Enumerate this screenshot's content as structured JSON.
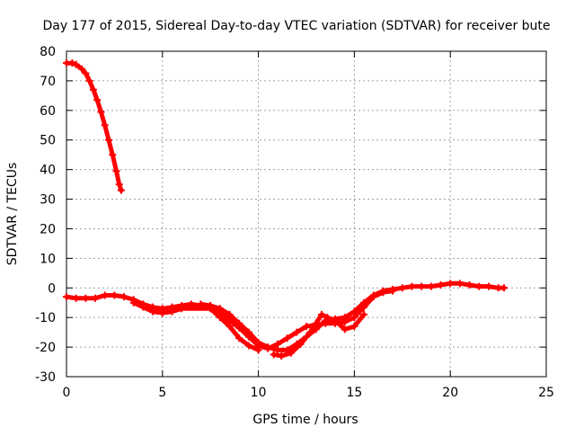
{
  "chart_data": {
    "type": "scatter",
    "title": "Day 177 of 2015, Sidereal Day-to-day VTEC variation (SDTVAR) for receiver bute",
    "xlabel": "GPS time / hours",
    "ylabel": "SDTVAR / TECUs",
    "xlim": [
      0,
      25
    ],
    "ylim": [
      -30,
      80
    ],
    "xticks": [
      0,
      5,
      10,
      15,
      20,
      25
    ],
    "yticks": [
      -30,
      -20,
      -10,
      0,
      10,
      20,
      30,
      40,
      50,
      60,
      70,
      80
    ],
    "grid": true,
    "legend": "none",
    "series": [
      {
        "name": "segment-1",
        "color": "#ff0000",
        "points": [
          [
            0.0,
            76
          ],
          [
            0.3,
            76
          ],
          [
            0.5,
            75.5
          ],
          [
            0.8,
            74
          ],
          [
            1.0,
            72.5
          ],
          [
            1.2,
            70
          ],
          [
            1.4,
            67
          ],
          [
            1.6,
            63.5
          ],
          [
            1.8,
            59.5
          ],
          [
            2.0,
            55
          ],
          [
            2.2,
            50
          ],
          [
            2.4,
            45
          ],
          [
            2.6,
            39.5
          ],
          [
            2.75,
            35
          ],
          [
            2.85,
            33
          ]
        ]
      },
      {
        "name": "segment-2",
        "color": "#ff0000",
        "points": [
          [
            0.0,
            -3
          ],
          [
            0.5,
            -3.5
          ],
          [
            1.0,
            -3.5
          ],
          [
            1.5,
            -3.5
          ],
          [
            2.0,
            -2.5
          ],
          [
            2.5,
            -2.5
          ],
          [
            3.0,
            -3
          ],
          [
            3.5,
            -4
          ],
          [
            4.0,
            -5.5
          ],
          [
            4.5,
            -6.5
          ],
          [
            5.0,
            -7
          ],
          [
            5.5,
            -6.5
          ],
          [
            6.0,
            -6
          ],
          [
            6.5,
            -5.5
          ],
          [
            7.0,
            -6
          ],
          [
            7.5,
            -6
          ],
          [
            8.0,
            -7
          ],
          [
            8.5,
            -9
          ],
          [
            9.0,
            -12
          ],
          [
            9.5,
            -15
          ],
          [
            10.0,
            -18.5
          ],
          [
            10.5,
            -20
          ],
          [
            11.0,
            -21
          ],
          [
            11.5,
            -21
          ],
          [
            12.0,
            -19
          ],
          [
            12.5,
            -16.5
          ],
          [
            13.0,
            -14
          ],
          [
            13.5,
            -11
          ],
          [
            14.0,
            -10.5
          ],
          [
            14.5,
            -10
          ],
          [
            15.0,
            -8
          ],
          [
            15.5,
            -5
          ],
          [
            16.0,
            -2.5
          ],
          [
            16.5,
            -1
          ],
          [
            17.0,
            -0.5
          ],
          [
            17.5,
            0
          ],
          [
            18.0,
            0.5
          ],
          [
            18.5,
            0.5
          ],
          [
            19.0,
            0.5
          ],
          [
            19.5,
            1
          ],
          [
            20.0,
            1.5
          ],
          [
            20.5,
            1.5
          ],
          [
            21.0,
            1
          ],
          [
            21.5,
            0.5
          ],
          [
            22.0,
            0.5
          ],
          [
            22.5,
            0
          ],
          [
            22.8,
            0
          ]
        ]
      },
      {
        "name": "segment-3",
        "color": "#ff0000",
        "points": [
          [
            7.0,
            -5.5
          ],
          [
            7.5,
            -6
          ],
          [
            8.0,
            -8
          ],
          [
            8.5,
            -11
          ],
          [
            9.0,
            -13.5
          ],
          [
            9.5,
            -16.5
          ],
          [
            10.0,
            -19.5
          ],
          [
            10.5,
            -20.5
          ],
          [
            11.0,
            -19
          ],
          [
            11.5,
            -17
          ],
          [
            12.0,
            -15
          ],
          [
            12.5,
            -13
          ],
          [
            13.0,
            -12.5
          ],
          [
            13.5,
            -12
          ],
          [
            14.0,
            -12
          ],
          [
            14.5,
            -11.5
          ],
          [
            15.0,
            -10
          ],
          [
            15.5,
            -6.5
          ],
          [
            16.0,
            -3
          ],
          [
            16.5,
            -1.5
          ],
          [
            17.0,
            -1
          ]
        ]
      },
      {
        "name": "segment-4",
        "color": "#ff0000",
        "points": [
          [
            10.8,
            -22.5
          ],
          [
            11.2,
            -23
          ],
          [
            11.7,
            -22
          ],
          [
            12.2,
            -19
          ],
          [
            12.7,
            -15
          ],
          [
            13.0,
            -12
          ],
          [
            13.3,
            -9
          ],
          [
            13.6,
            -10
          ],
          [
            14.0,
            -11
          ],
          [
            14.5,
            -14
          ],
          [
            15.0,
            -13
          ],
          [
            15.5,
            -9
          ]
        ]
      },
      {
        "name": "segment-5",
        "color": "#ff0000",
        "points": [
          [
            3.5,
            -5
          ],
          [
            4.0,
            -6.5
          ],
          [
            4.5,
            -8
          ],
          [
            5.0,
            -8.5
          ],
          [
            5.5,
            -8
          ],
          [
            6.0,
            -7
          ],
          [
            7.5,
            -7
          ],
          [
            8.0,
            -10
          ],
          [
            8.5,
            -13
          ],
          [
            9.0,
            -17
          ],
          [
            9.5,
            -19.5
          ],
          [
            10.0,
            -21
          ]
        ]
      }
    ]
  }
}
